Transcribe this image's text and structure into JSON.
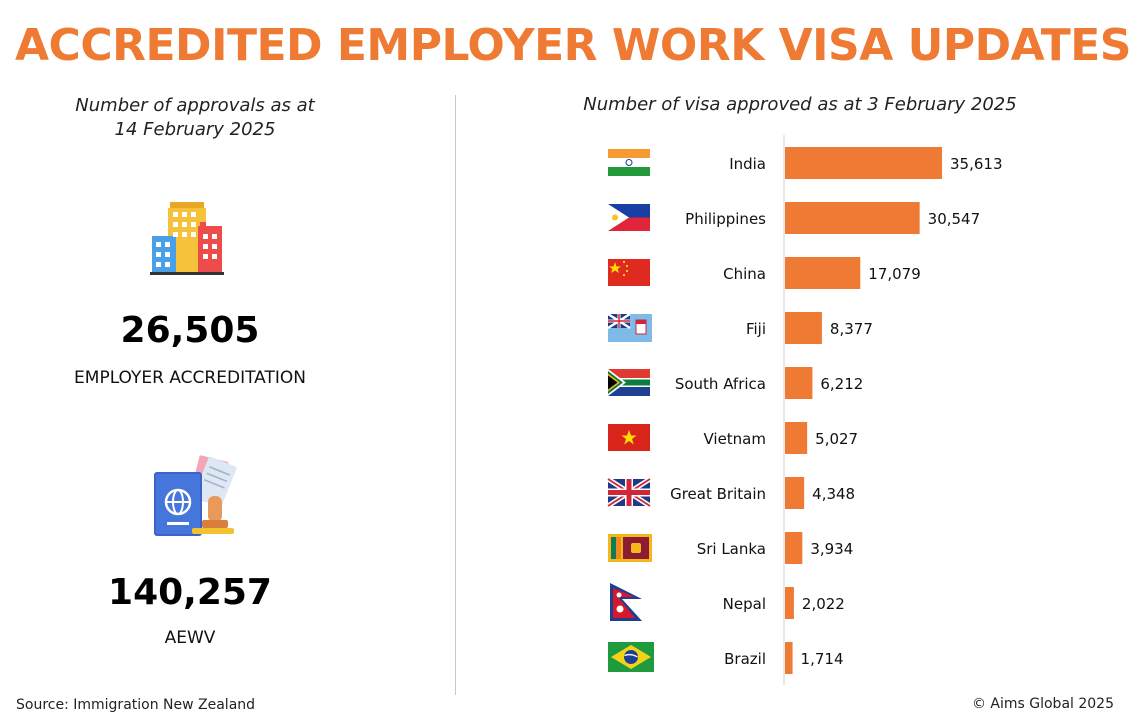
{
  "title": "ACCREDITED EMPLOYER WORK VISA UPDATES",
  "left": {
    "caption_line1": "Number of approvals as at",
    "caption_line2": "14 February 2025",
    "stats": [
      {
        "value": "26,505",
        "label": "EMPLOYER ACCREDITATION",
        "icon": "buildings-icon"
      },
      {
        "value": "140,257",
        "label": "AEWV",
        "icon": "passport-stamp-icon"
      }
    ]
  },
  "colors": {
    "accent": "#ee7a34",
    "bar": "#ee7a34"
  },
  "chart_data": {
    "type": "bar",
    "orientation": "horizontal",
    "title": "Number of visa approved as at 3 February 2025",
    "categories": [
      "India",
      "Philippines",
      "China",
      "Fiji",
      "South Africa",
      "Vietnam",
      "Great Britain",
      "Sri Lanka",
      "Nepal",
      "Brazil"
    ],
    "values": [
      35613,
      30547,
      17079,
      8377,
      6212,
      5027,
      4348,
      3934,
      2022,
      1714
    ],
    "value_labels": [
      "35,613",
      "30,547",
      "17,079",
      "8,377",
      "6,212",
      "5,027",
      "4,348",
      "3,934",
      "2,022",
      "1,714"
    ],
    "flags": [
      "india-flag-icon",
      "philippines-flag-icon",
      "china-flag-icon",
      "fiji-flag-icon",
      "south-africa-flag-icon",
      "vietnam-flag-icon",
      "great-britain-flag-icon",
      "sri-lanka-flag-icon",
      "nepal-flag-icon",
      "brazil-flag-icon"
    ],
    "xlim": [
      0,
      35613
    ],
    "grid": false,
    "legend": "none"
  },
  "footer": {
    "source": "Source: Immigration  New Zealand",
    "copyright": "© Aims Global 2025"
  }
}
